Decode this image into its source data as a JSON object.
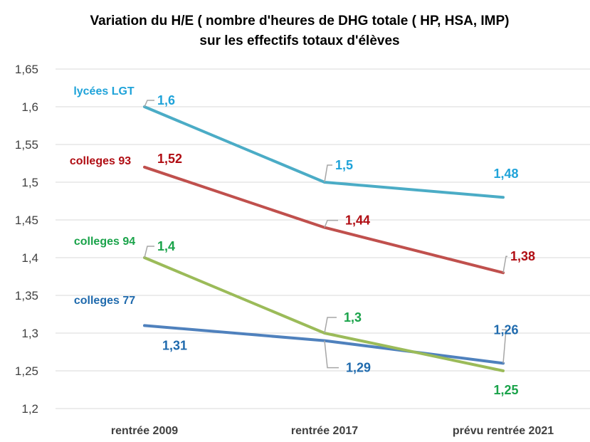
{
  "chart_data": {
    "type": "line",
    "title_lines": [
      "Variation du H/E ( nombre d'heures de DHG totale ( HP, HSA, IMP)",
      "sur les effectifs totaux d'élèves"
    ],
    "xlabel": "",
    "ylabel": "",
    "categories": [
      "rentrée 2009",
      "rentrée 2017",
      "prévu rentrée 2021"
    ],
    "ylim": [
      1.2,
      1.65
    ],
    "ytick_step": 0.05,
    "ytick_labels": [
      "1,2",
      "1,25",
      "1,3",
      "1,35",
      "1,4",
      "1,45",
      "1,5",
      "1,55",
      "1,6",
      "1,65"
    ],
    "grid": true,
    "legend": "none",
    "series": [
      {
        "name": "lycées LGT",
        "values": [
          1.6,
          1.5,
          1.48
        ],
        "labels": [
          "1,6",
          "1,5",
          "1,48"
        ],
        "line_color": "#4bacc6",
        "text_color": "#1fa3d9"
      },
      {
        "name": "colleges 93",
        "values": [
          1.52,
          1.44,
          1.38
        ],
        "labels": [
          "1,52",
          "1,44",
          "1,38"
        ],
        "line_color": "#c0504d",
        "text_color": "#b00d13"
      },
      {
        "name": "colleges 94",
        "values": [
          1.4,
          1.3,
          1.25
        ],
        "labels": [
          "1,4",
          "1,3",
          "1,25"
        ],
        "line_color": "#9bbb59",
        "text_color": "#1aa34a"
      },
      {
        "name": "colleges 77",
        "values": [
          1.31,
          1.29,
          1.26
        ],
        "labels": [
          "1,31",
          "1,29",
          "1,26"
        ],
        "line_color": "#4f81bd",
        "text_color": "#1f6aad"
      }
    ]
  }
}
